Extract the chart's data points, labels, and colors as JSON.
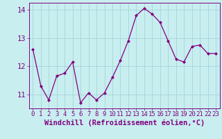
{
  "x": [
    0,
    1,
    2,
    3,
    4,
    5,
    6,
    7,
    8,
    9,
    10,
    11,
    12,
    13,
    14,
    15,
    16,
    17,
    18,
    19,
    20,
    21,
    22,
    23
  ],
  "y": [
    12.6,
    11.3,
    10.8,
    11.65,
    11.75,
    12.15,
    10.7,
    11.05,
    10.8,
    11.05,
    11.6,
    12.2,
    12.9,
    13.8,
    14.05,
    13.85,
    13.55,
    12.9,
    12.25,
    12.15,
    12.7,
    12.75,
    12.45,
    12.45
  ],
  "line_color": "#800080",
  "marker": "D",
  "marker_size": 2,
  "bg_color": "#c8eef0",
  "grid_color": "#aad8dc",
  "xlabel": "Windchill (Refroidissement éolien,°C)",
  "ylim": [
    10.5,
    14.25
  ],
  "xlim": [
    -0.5,
    23.5
  ],
  "yticks": [
    11,
    12,
    13,
    14
  ],
  "xticks": [
    0,
    1,
    2,
    3,
    4,
    5,
    6,
    7,
    8,
    9,
    10,
    11,
    12,
    13,
    14,
    15,
    16,
    17,
    18,
    19,
    20,
    21,
    22,
    23
  ],
  "label_color": "#800080",
  "tick_color": "#800080",
  "font_size": 6.5
}
